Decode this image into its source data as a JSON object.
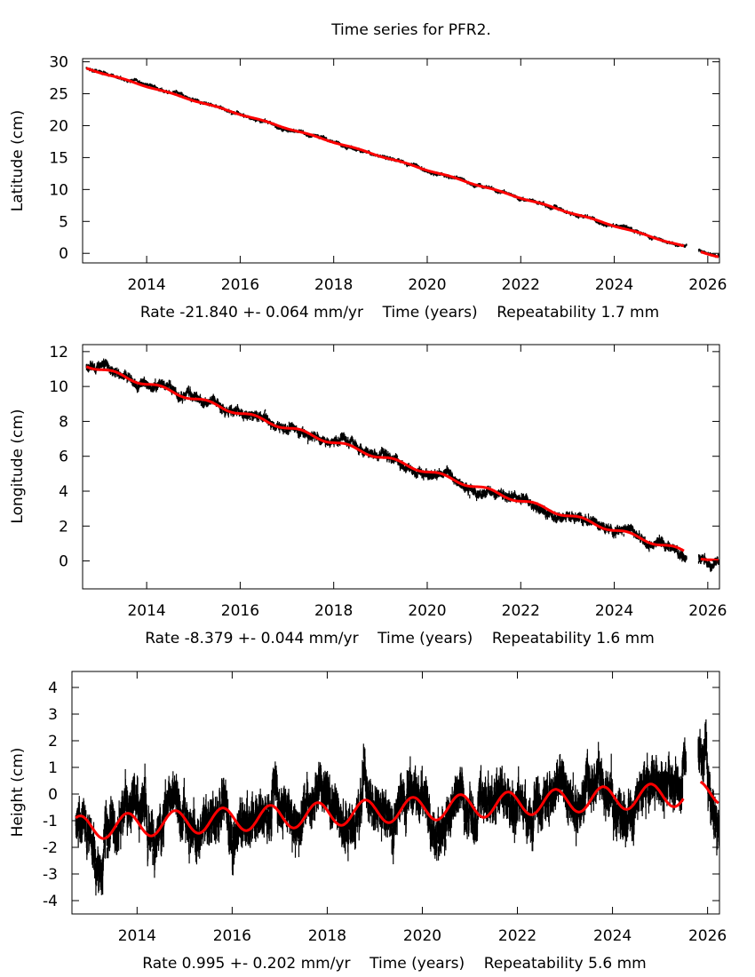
{
  "title": "Time series for PFR2.",
  "colors": {
    "observations": "#000000",
    "model": "#ff0000",
    "frame": "#000000"
  },
  "chart_data": [
    {
      "type": "scatter",
      "ylabel": "Latitude (cm)",
      "xlabel": "Rate -21.840 +- 0.064 mm/yr    Time (years)    Repeatability 1.7 mm",
      "xlim": [
        2012.63,
        2026.25
      ],
      "ylim": [
        -1.5,
        30.5
      ],
      "xticks": [
        2014,
        2016,
        2018,
        2020,
        2022,
        2024,
        2026
      ],
      "yticks": [
        0,
        5,
        10,
        15,
        20,
        25,
        30
      ],
      "fit": {
        "rate_cm_per_yr": -2.184,
        "value_at_2013": 28.35,
        "annual_amplitude_cm": 0.08,
        "noise_cm": 0.17
      },
      "data_gap": [
        2025.55,
        2025.8
      ],
      "series": [
        "observations with error bars",
        "model fit (red)"
      ]
    },
    {
      "type": "scatter",
      "ylabel": "Longitude (cm)",
      "xlabel": "Rate -8.379 +- 0.044 mm/yr    Time (years)    Repeatability 1.6 mm",
      "xlim": [
        2012.63,
        2026.25
      ],
      "ylim": [
        -1.6,
        12.4
      ],
      "xticks": [
        2014,
        2016,
        2018,
        2020,
        2022,
        2024,
        2026
      ],
      "yticks": [
        0,
        2,
        4,
        6,
        8,
        10,
        12
      ],
      "fit": {
        "rate_cm_per_yr": -0.8379,
        "value_at_2013": 11.0,
        "annual_amplitude_cm": 0.12,
        "noise_cm": 0.16
      },
      "data_gap": [
        2025.55,
        2025.8
      ],
      "series": [
        "observations with error bars",
        "model fit (red)"
      ]
    },
    {
      "type": "scatter",
      "ylabel": "Height (cm)",
      "xlabel": "Rate 0.995 +- 0.202 mm/yr    Time (years)    Repeatability 5.6 mm",
      "xlim": [
        2012.63,
        2026.25
      ],
      "ylim": [
        -4.5,
        4.6
      ],
      "xticks": [
        2014,
        2016,
        2018,
        2020,
        2022,
        2024,
        2026
      ],
      "yticks": [
        -4,
        -3,
        -2,
        -1,
        0,
        1,
        2,
        3,
        4
      ],
      "fit": {
        "rate_cm_per_yr": 0.0995,
        "value_at_2013": -1.25,
        "annual_amplitude_cm": 0.45,
        "noise_cm": 0.5
      },
      "data_gap": [
        2025.55,
        2025.8
      ],
      "series": [
        "observations with error bars",
        "model fit (red)"
      ]
    }
  ]
}
